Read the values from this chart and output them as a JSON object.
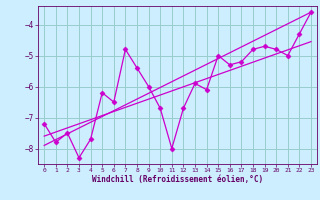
{
  "xlabel": "Windchill (Refroidissement éolien,°C)",
  "bg_color": "#cceeff",
  "line_color": "#cc00cc",
  "grid_color": "#99cccc",
  "axis_label_color": "#660066",
  "tick_label_color": "#660066",
  "xlim": [
    -0.5,
    23.5
  ],
  "ylim": [
    -8.5,
    -3.4
  ],
  "yticks": [
    -8,
    -7,
    -6,
    -5,
    -4
  ],
  "xticks": [
    0,
    1,
    2,
    3,
    4,
    5,
    6,
    7,
    8,
    9,
    10,
    11,
    12,
    13,
    14,
    15,
    16,
    17,
    18,
    19,
    20,
    21,
    22,
    23
  ],
  "series1_x": [
    0,
    1,
    2,
    3,
    4,
    5,
    6,
    7,
    8,
    9,
    10,
    11,
    12,
    13,
    14,
    15,
    16,
    17,
    18,
    19,
    20,
    21,
    22,
    23
  ],
  "series1_y": [
    -7.2,
    -7.8,
    -7.5,
    -8.3,
    -7.7,
    -6.2,
    -6.5,
    -4.8,
    -5.4,
    -6.0,
    -6.7,
    -8.0,
    -6.7,
    -5.9,
    -6.1,
    -5.0,
    -5.3,
    -5.2,
    -4.8,
    -4.7,
    -4.8,
    -5.0,
    -4.3,
    -3.6
  ],
  "trend1_x": [
    0,
    23
  ],
  "trend1_y": [
    -7.9,
    -3.6
  ],
  "trend2_x": [
    0,
    23
  ],
  "trend2_y": [
    -7.6,
    -4.55
  ]
}
